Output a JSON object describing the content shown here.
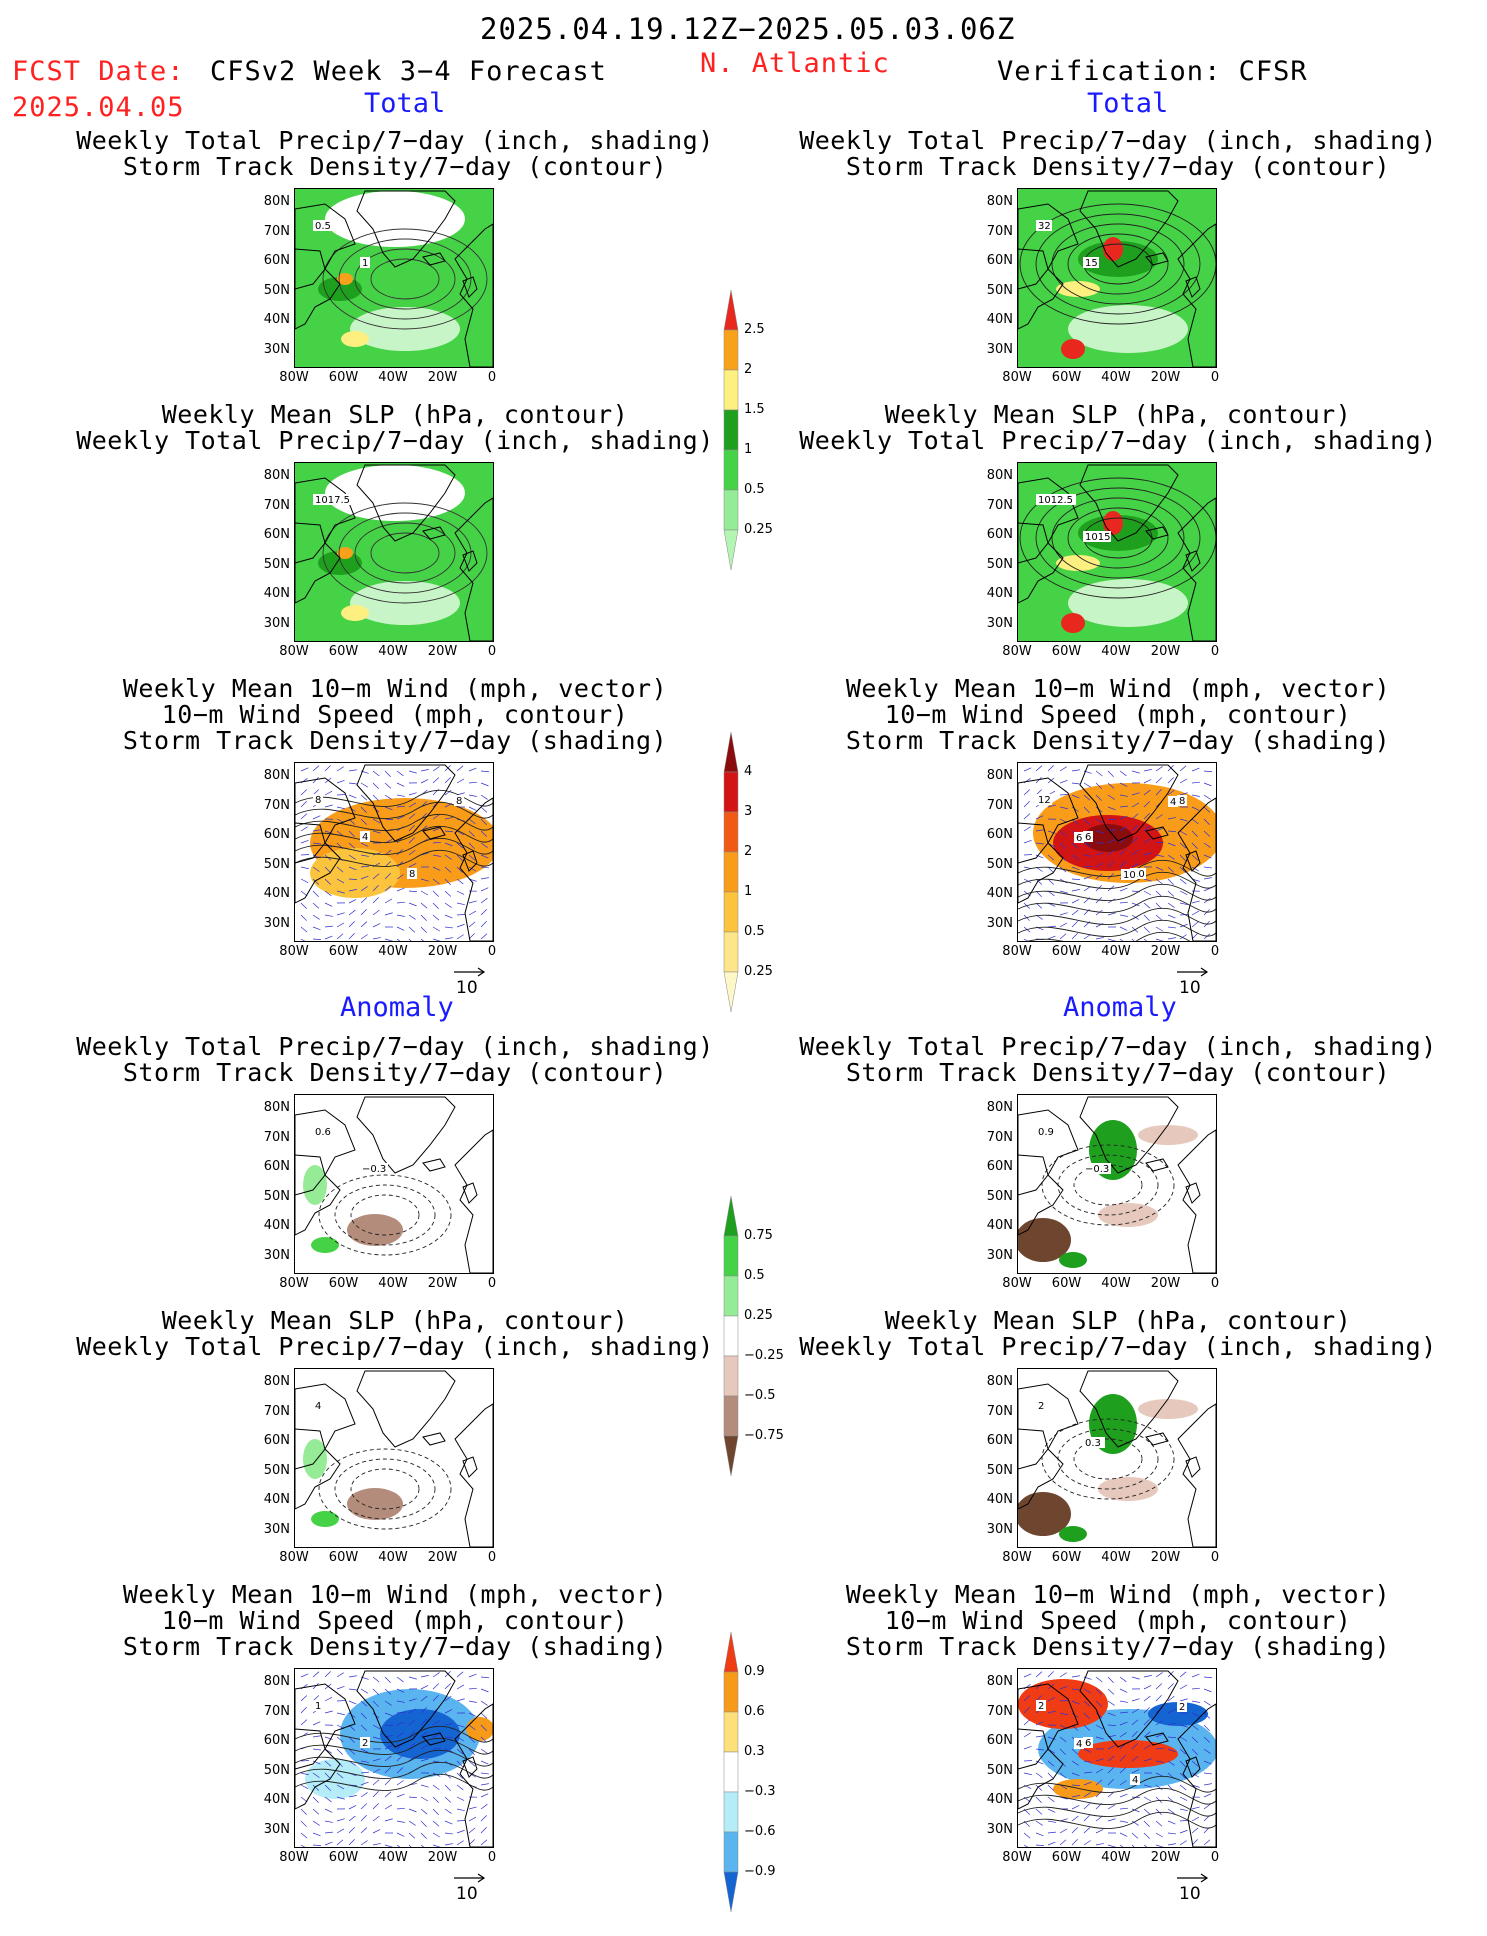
{
  "header": {
    "date_range": "2025.04.19.12Z−2025.05.03.06Z",
    "fcst_label": "FCST Date:",
    "fcst_date": "2025.04.05",
    "model_title": "CFSv2 Week 3−4 Forecast",
    "region": "N. Atlantic",
    "verification": "Verification: CFSR"
  },
  "sections": {
    "total": "Total",
    "anomaly": "Anomaly"
  },
  "panel_titles": {
    "precip_storm": [
      "Weekly Total Precip/7−day (inch, shading)",
      "Storm Track Density/7−day (contour)"
    ],
    "slp_precip": [
      "Weekly Mean SLP (hPa, contour)",
      "Weekly Total Precip/7−day (inch, shading)"
    ],
    "wind_storm": [
      "Weekly Mean 10−m Wind (mph, vector)",
      "10−m Wind Speed (mph, contour)",
      "Storm Track Density/7−day (shading)"
    ]
  },
  "axes": {
    "lat_ticks": [
      "80N",
      "70N",
      "60N",
      "50N",
      "40N",
      "30N"
    ],
    "lon_ticks": [
      "80W",
      "60W",
      "40W",
      "20W",
      "0"
    ]
  },
  "vector_ref": "10",
  "contour_labels": {
    "f_total_precip": [
      "0.5",
      "1"
    ],
    "v_total_precip": [
      "32",
      "15"
    ],
    "f_total_slp": [
      "1017.5"
    ],
    "v_total_slp": [
      "1012.5",
      "1015"
    ],
    "f_total_wind": [
      "8",
      "4",
      "8",
      "8"
    ],
    "v_total_wind": [
      "12",
      "6",
      "10",
      "8",
      "6",
      "10",
      "4"
    ],
    "f_anom_precip": [
      "0.6",
      "−0.3"
    ],
    "v_anom_precip": [
      "0.9",
      "−0.3"
    ],
    "f_anom_slp": [
      "4"
    ],
    "v_anom_slp": [
      "2",
      "0.3"
    ],
    "f_anom_wind": [
      "1",
      "2"
    ],
    "v_anom_wind": [
      "2",
      "6",
      "4",
      "2",
      "4"
    ]
  },
  "colorbars": {
    "total_precip": {
      "labels": [
        "2.5",
        "2",
        "1.5",
        "1",
        "0.5",
        "0.25"
      ],
      "colors": [
        "#e8281e",
        "#f7a21a",
        "#fdf080",
        "#1ea01e",
        "#46d246",
        "#96eb96",
        "#b4f5b4"
      ]
    },
    "total_storm": {
      "labels": [
        "4",
        "3",
        "2",
        "1",
        "0.5",
        "0.25"
      ],
      "colors": [
        "#8b0c0c",
        "#d21414",
        "#f05a14",
        "#f99c1a",
        "#fbc43c",
        "#fde68a",
        "#fef8c8"
      ]
    },
    "anom_precip": {
      "labels": [
        "0.75",
        "0.5",
        "0.25",
        "−0.25",
        "−0.5",
        "−0.75"
      ],
      "colors": [
        "#1ea01e",
        "#46d246",
        "#96eb96",
        "#ffffff",
        "#e6c8bc",
        "#b48c7c",
        "#6e4630"
      ]
    },
    "anom_storm": {
      "labels": [
        "0.9",
        "0.6",
        "0.3",
        "−0.3",
        "−0.6",
        "−0.9"
      ],
      "colors": [
        "#f03c14",
        "#f79a1a",
        "#fde07a",
        "#ffffff",
        "#b4ecf8",
        "#5ab4f0",
        "#1464d2"
      ]
    }
  }
}
